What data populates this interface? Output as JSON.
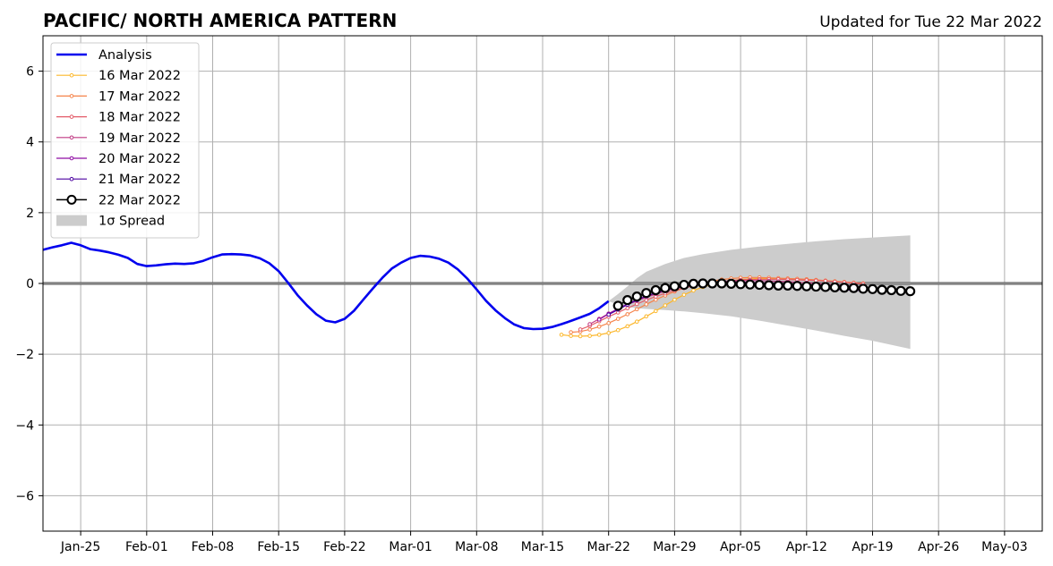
{
  "chart_data": {
    "type": "line",
    "title": "PACIFIC/ NORTH AMERICA PATTERN",
    "subtitle": "Updated for Tue 22 Mar 2022",
    "xlabel": "",
    "ylabel": "",
    "ylim": [
      -7,
      7
    ],
    "xlim": [
      "2022-01-21",
      "2022-05-07"
    ],
    "grid": true,
    "legend_position": "top-left",
    "x_tick_labels": [
      "Jan-25",
      "Feb-01",
      "Feb-08",
      "Feb-15",
      "Feb-22",
      "Mar-01",
      "Mar-08",
      "Mar-15",
      "Mar-22",
      "Mar-29",
      "Apr-05",
      "Apr-12",
      "Apr-19",
      "Apr-26",
      "May-03"
    ],
    "x_tick_dates": [
      "2022-01-25",
      "2022-02-01",
      "2022-02-08",
      "2022-02-15",
      "2022-02-22",
      "2022-03-01",
      "2022-03-08",
      "2022-03-15",
      "2022-03-22",
      "2022-03-29",
      "2022-04-05",
      "2022-04-12",
      "2022-04-19",
      "2022-04-26",
      "2022-05-03"
    ],
    "y_ticks": [
      -6,
      -4,
      -2,
      0,
      2,
      4,
      6
    ],
    "y_tick_labels": [
      "−6",
      "−4",
      "−2",
      "0",
      "2",
      "4",
      "6"
    ],
    "analysis": {
      "name": "Analysis",
      "color": "#0000ee",
      "x": [
        "2022-01-21",
        "2022-01-22",
        "2022-01-23",
        "2022-01-24",
        "2022-01-25",
        "2022-01-26",
        "2022-01-27",
        "2022-01-28",
        "2022-01-29",
        "2022-01-30",
        "2022-01-31",
        "2022-02-01",
        "2022-02-02",
        "2022-02-03",
        "2022-02-04",
        "2022-02-05",
        "2022-02-06",
        "2022-02-07",
        "2022-02-08",
        "2022-02-09",
        "2022-02-10",
        "2022-02-11",
        "2022-02-12",
        "2022-02-13",
        "2022-02-14",
        "2022-02-15",
        "2022-02-16",
        "2022-02-17",
        "2022-02-18",
        "2022-02-19",
        "2022-02-20",
        "2022-02-21",
        "2022-02-22",
        "2022-02-23",
        "2022-02-24",
        "2022-02-25",
        "2022-02-26",
        "2022-02-27",
        "2022-02-28",
        "2022-03-01",
        "2022-03-02",
        "2022-03-03",
        "2022-03-04",
        "2022-03-05",
        "2022-03-06",
        "2022-03-07",
        "2022-03-08",
        "2022-03-09",
        "2022-03-10",
        "2022-03-11",
        "2022-03-12",
        "2022-03-13",
        "2022-03-14",
        "2022-03-15",
        "2022-03-16",
        "2022-03-17",
        "2022-03-18",
        "2022-03-19",
        "2022-03-20",
        "2022-03-21",
        "2022-03-22"
      ],
      "values": [
        0.95,
        1.02,
        1.08,
        1.15,
        1.08,
        0.97,
        0.93,
        0.88,
        0.81,
        0.72,
        0.55,
        0.49,
        0.51,
        0.54,
        0.56,
        0.55,
        0.57,
        0.64,
        0.74,
        0.82,
        0.83,
        0.82,
        0.79,
        0.71,
        0.57,
        0.35,
        0.02,
        -0.33,
        -0.62,
        -0.87,
        -1.05,
        -1.1,
        -1.0,
        -0.77,
        -0.45,
        -0.14,
        0.16,
        0.42,
        0.59,
        0.72,
        0.78,
        0.76,
        0.7,
        0.59,
        0.4,
        0.14,
        -0.17,
        -0.49,
        -0.76,
        -0.98,
        -1.16,
        -1.26,
        -1.29,
        -1.28,
        -1.23,
        -1.15,
        -1.06,
        -0.96,
        -0.86,
        -0.7,
        -0.5
      ]
    },
    "spread": {
      "name": "1σ Spread",
      "color": "#cccccc",
      "x": [
        "2022-03-22",
        "2022-03-23",
        "2022-03-24",
        "2022-03-25",
        "2022-03-26",
        "2022-03-28",
        "2022-03-30",
        "2022-04-01",
        "2022-04-04",
        "2022-04-07",
        "2022-04-10",
        "2022-04-13",
        "2022-04-16",
        "2022-04-19",
        "2022-04-23"
      ],
      "upper": [
        -0.5,
        -0.3,
        -0.08,
        0.15,
        0.33,
        0.55,
        0.72,
        0.83,
        0.95,
        1.04,
        1.12,
        1.19,
        1.25,
        1.3,
        1.36
      ],
      "lower": [
        -0.5,
        -0.6,
        -0.66,
        -0.7,
        -0.72,
        -0.75,
        -0.79,
        -0.84,
        -0.93,
        -1.05,
        -1.19,
        -1.33,
        -1.48,
        -1.62,
        -1.85
      ]
    },
    "forecasts": [
      {
        "name": "16 Mar 2022",
        "color": "#fcb72b",
        "x0": "2022-03-17",
        "values": [
          -1.45,
          -1.48,
          -1.49,
          -1.48,
          -1.45,
          -1.4,
          -1.32,
          -1.21,
          -1.08,
          -0.93,
          -0.78,
          -0.62,
          -0.46,
          -0.32,
          -0.2,
          -0.1,
          -0.03,
          0.03,
          0.08,
          0.11,
          0.13,
          0.14,
          0.14,
          0.14,
          0.13,
          0.12,
          0.11,
          0.09,
          0.08,
          0.06,
          0.04,
          0.02,
          0.0
        ]
      },
      {
        "name": "17 Mar 2022",
        "color": "#f5834a",
        "x0": "2022-03-18",
        "values": [
          -1.38,
          -1.36,
          -1.3,
          -1.22,
          -1.12,
          -1.0,
          -0.87,
          -0.73,
          -0.59,
          -0.46,
          -0.34,
          -0.23,
          -0.13,
          -0.05,
          0.02,
          0.07,
          0.11,
          0.14,
          0.16,
          0.17,
          0.17,
          0.16,
          0.15,
          0.14,
          0.13,
          0.12,
          0.1,
          0.08,
          0.06,
          0.04,
          0.02,
          0.0
        ]
      },
      {
        "name": "18 Mar 2022",
        "color": "#e35b68",
        "x0": "2022-03-19",
        "values": [
          -1.3,
          -1.2,
          -1.07,
          -0.94,
          -0.82,
          -0.7,
          -0.58,
          -0.47,
          -0.37,
          -0.28,
          -0.2,
          -0.13,
          -0.07,
          -0.02,
          0.02,
          0.05,
          0.08,
          0.1,
          0.11,
          0.12,
          0.12,
          0.12,
          0.11,
          0.1,
          0.09,
          0.08,
          0.07,
          0.05,
          0.03,
          0.01,
          -0.01
        ]
      },
      {
        "name": "19 Mar 2022",
        "color": "#c03a83",
        "x0": "2022-03-20",
        "values": [
          -1.15,
          -1.0,
          -0.85,
          -0.72,
          -0.6,
          -0.49,
          -0.39,
          -0.3,
          -0.22,
          -0.15,
          -0.09,
          -0.04,
          0.0,
          0.03,
          0.05,
          0.07,
          0.08,
          0.08,
          0.08,
          0.07,
          0.06,
          0.05,
          0.03,
          0.02,
          0.0,
          -0.02,
          -0.04,
          -0.06,
          -0.08,
          -0.1
        ]
      },
      {
        "name": "20 Mar 2022",
        "color": "#8f0da4",
        "x0": "2022-03-21",
        "values": [
          -1.02,
          -0.86,
          -0.71,
          -0.58,
          -0.46,
          -0.36,
          -0.27,
          -0.19,
          -0.12,
          -0.07,
          -0.02,
          0.01,
          0.03,
          0.04,
          0.04,
          0.04,
          0.03,
          0.02,
          0.01,
          0.0,
          -0.02,
          -0.04,
          -0.06,
          -0.08,
          -0.1,
          -0.12,
          -0.14,
          -0.16,
          -0.18
        ]
      },
      {
        "name": "21 Mar 2022",
        "color": "#4c02a1",
        "x0": "2022-03-22",
        "values": [
          -0.88,
          -0.74,
          -0.6,
          -0.47,
          -0.36,
          -0.27,
          -0.19,
          -0.13,
          -0.08,
          -0.04,
          -0.01,
          0.01,
          0.01,
          0.01,
          0.0,
          -0.01,
          -0.03,
          -0.05,
          -0.07,
          -0.09,
          -0.11,
          -0.13,
          -0.14,
          -0.16,
          -0.17,
          -0.18,
          -0.19,
          -0.2
        ]
      },
      {
        "name": "22 Mar 2022",
        "color": "#000000",
        "x0": "2022-03-23",
        "values": [
          -0.63,
          -0.47,
          -0.37,
          -0.27,
          -0.19,
          -0.13,
          -0.08,
          -0.04,
          -0.01,
          0.0,
          0.0,
          0.0,
          -0.01,
          -0.02,
          -0.03,
          -0.04,
          -0.05,
          -0.06,
          -0.06,
          -0.07,
          -0.08,
          -0.09,
          -0.1,
          -0.11,
          -0.12,
          -0.13,
          -0.15,
          -0.16,
          -0.18,
          -0.19,
          -0.21,
          -0.22
        ]
      }
    ]
  }
}
